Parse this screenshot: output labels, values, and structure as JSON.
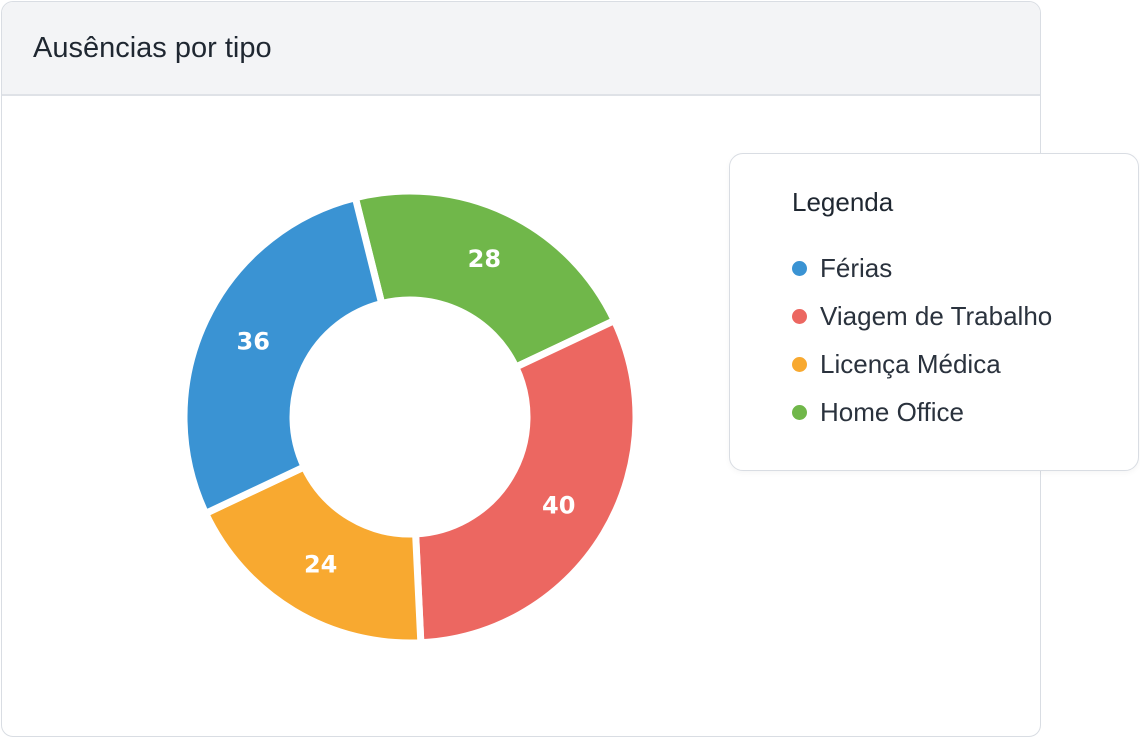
{
  "card": {
    "title": "Ausências por tipo"
  },
  "chart_data": {
    "type": "pie",
    "donut": true,
    "title": "Ausências por tipo",
    "categories": [
      "Férias",
      "Viagem de Trabalho",
      "Licença Médica",
      "Home Office"
    ],
    "values": [
      36,
      40,
      24,
      28
    ],
    "colors": [
      "#3a93d3",
      "#ec6761",
      "#f8a930",
      "#70b74a"
    ],
    "legend": {
      "title": "Legenda",
      "position": "right"
    }
  }
}
